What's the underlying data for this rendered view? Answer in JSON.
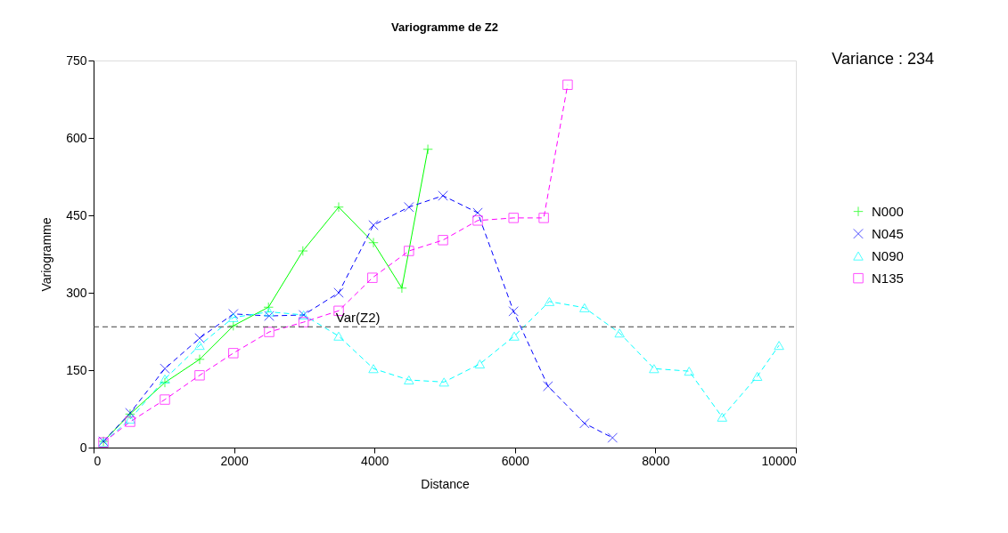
{
  "chart_data": {
    "type": "line",
    "title": "Variogramme de Z2",
    "xlabel": "Distance",
    "ylabel": "Variogramme",
    "xlim": [
      0,
      10000
    ],
    "xticks": [
      0,
      2000,
      4000,
      6000,
      8000,
      10000
    ],
    "ylim": [
      0,
      750
    ],
    "yticks": [
      0,
      150,
      300,
      450,
      600,
      750
    ],
    "grid": false,
    "legend": "right",
    "annotations": [
      "Variance : 234"
    ],
    "ref_lines": [
      {
        "axis": "y",
        "value": 234,
        "label": "Var(Z2)",
        "color": "#404040",
        "line_style": "dashed"
      }
    ],
    "series": [
      {
        "name": "N000",
        "color": "#00ff00",
        "marker": "cross",
        "line_style": "solid",
        "x": [
          140,
          520,
          1015,
          1510,
          1990,
          2490,
          2980,
          3490,
          3985,
          4390,
          4760
        ],
        "values": [
          12,
          65,
          126,
          171,
          236,
          272,
          381,
          466,
          397,
          309,
          578
        ]
      },
      {
        "name": "N045",
        "color": "#0000ff",
        "marker": "x",
        "line_style": "dashed",
        "x": [
          140,
          520,
          1015,
          1510,
          1990,
          2500,
          2990,
          3490,
          3985,
          4490,
          4975,
          5470,
          5980,
          6470,
          6990,
          7390
        ],
        "values": [
          12,
          67,
          153,
          212,
          259,
          255,
          257,
          300,
          431,
          466,
          488,
          455,
          264,
          119,
          47,
          19
        ]
      },
      {
        "name": "N090",
        "color": "#00ffff",
        "marker": "triangle",
        "line_style": "dashed",
        "x": [
          140,
          520,
          1015,
          1510,
          1990,
          2500,
          2990,
          3490,
          3985,
          4490,
          4990,
          5500,
          5990,
          6490,
          6990,
          7490,
          7980,
          8480,
          8950,
          9450,
          9760
        ],
        "values": [
          10,
          55,
          133,
          198,
          252,
          263,
          257,
          216,
          153,
          131,
          127,
          162,
          216,
          283,
          271,
          222,
          153,
          148,
          59,
          138,
          198
        ]
      },
      {
        "name": "N135",
        "color": "#ff00ff",
        "marker": "square",
        "line_style": "dashed",
        "x": [
          140,
          520,
          1015,
          1510,
          1990,
          2500,
          2990,
          3490,
          3970,
          4490,
          4975,
          5470,
          5980,
          6410,
          6750
        ],
        "values": [
          10,
          50,
          93,
          140,
          183,
          224,
          243,
          265,
          329,
          381,
          402,
          440,
          445,
          445,
          703
        ]
      }
    ]
  }
}
